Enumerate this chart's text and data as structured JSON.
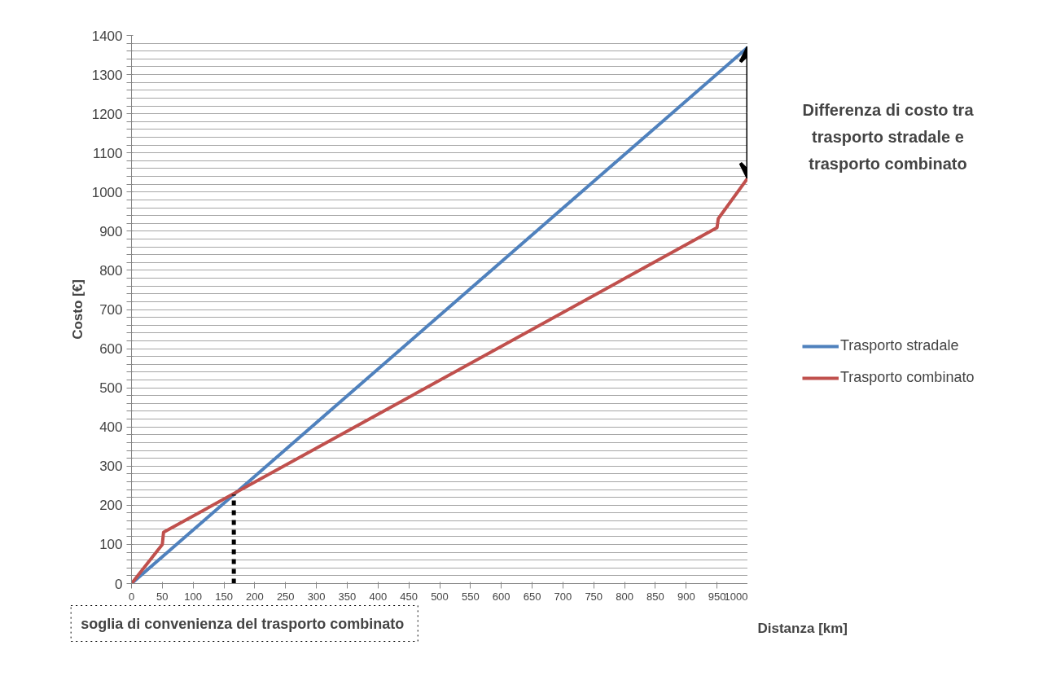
{
  "chart_data": {
    "type": "line",
    "xlabel": "Distanza [km]",
    "ylabel": "Costo [€]",
    "series": [
      {
        "name": "Trasporto stradale",
        "color": "#4f81bd",
        "x": [
          0,
          1000
        ],
        "values": [
          0,
          1370
        ]
      },
      {
        "name": "Trasporto combinato",
        "color": "#c0504d",
        "x": [
          0,
          50,
          52,
          950,
          952,
          1000
        ],
        "values": [
          0,
          100,
          131,
          909,
          932,
          1036
        ]
      }
    ],
    "xlim": [
      0,
      1000
    ],
    "xticks": [
      0,
      50,
      100,
      150,
      200,
      250,
      300,
      350,
      400,
      450,
      500,
      550,
      600,
      650,
      700,
      750,
      800,
      850,
      900,
      950,
      1000
    ],
    "ylim": [
      0,
      1400
    ],
    "yticks": [
      0,
      {
        "value": 20,
        "label": null
      },
      {
        "value": 40,
        "label": null
      },
      {
        "value": 60,
        "label": null
      },
      {
        "value": 80,
        "label": null
      },
      100,
      {
        "value": 120,
        "label": null
      },
      {
        "value": 140,
        "label": null
      },
      {
        "value": 160,
        "label": null
      },
      {
        "value": 180,
        "label": null
      },
      200,
      {
        "value": 220,
        "label": null
      },
      {
        "value": 240,
        "label": null
      },
      {
        "value": 260,
        "label": null
      },
      {
        "value": 280,
        "label": null
      },
      300,
      {
        "value": 320,
        "label": null
      },
      {
        "value": 340,
        "label": null
      },
      {
        "value": 360,
        "label": null
      },
      {
        "value": 380,
        "label": null
      },
      400,
      {
        "value": 420,
        "label": null
      },
      {
        "value": 440,
        "label": null
      },
      {
        "value": 460,
        "label": null
      },
      {
        "value": 480,
        "label": null
      },
      500,
      {
        "value": 520,
        "label": null
      },
      {
        "value": 540,
        "label": null
      },
      {
        "value": 560,
        "label": null
      },
      {
        "value": 580,
        "label": null
      },
      600,
      {
        "value": 620,
        "label": null
      },
      {
        "value": 640,
        "label": null
      },
      {
        "value": 660,
        "label": null
      },
      {
        "value": 680,
        "label": null
      },
      700,
      {
        "value": 720,
        "label": null
      },
      {
        "value": 740,
        "label": null
      },
      {
        "value": 760,
        "label": null
      },
      {
        "value": 780,
        "label": null
      },
      800,
      {
        "value": 820,
        "label": null
      },
      {
        "value": 840,
        "label": null
      },
      {
        "value": 860,
        "label": null
      },
      {
        "value": 880,
        "label": null
      },
      900,
      {
        "value": 920,
        "label": null
      },
      {
        "value": 940,
        "label": null
      },
      {
        "value": 960,
        "label": null
      },
      {
        "value": 980,
        "label": null
      },
      1000,
      {
        "value": 1020,
        "label": null
      },
      {
        "value": 1040,
        "label": null
      },
      {
        "value": 1060,
        "label": null
      },
      {
        "value": 1080,
        "label": null
      },
      1100,
      {
        "value": 1120,
        "label": null
      },
      {
        "value": 1140,
        "label": null
      },
      {
        "value": 1160,
        "label": null
      },
      {
        "value": 1180,
        "label": null
      },
      1200,
      {
        "value": 1220,
        "label": null
      },
      {
        "value": 1240,
        "label": null
      },
      {
        "value": 1260,
        "label": null
      },
      {
        "value": 1280,
        "label": null
      },
      1300,
      {
        "value": 1320,
        "label": null
      },
      {
        "value": 1340,
        "label": null
      },
      {
        "value": 1360,
        "label": null
      },
      {
        "value": 1380,
        "label": null
      },
      1400
    ],
    "grid": "y",
    "legend": "right",
    "marker": "none",
    "line_style": "solid",
    "ref_lines": [
      {
        "axis": "x",
        "value": 166,
        "label": "soglia di convenienza del  trasporto combinato",
        "color": "#000000",
        "line_style": "dashed"
      }
    ],
    "annotations": [
      "Differenza di costo tra\ntrasporto stradale e\ntrasporto combinato"
    ]
  }
}
